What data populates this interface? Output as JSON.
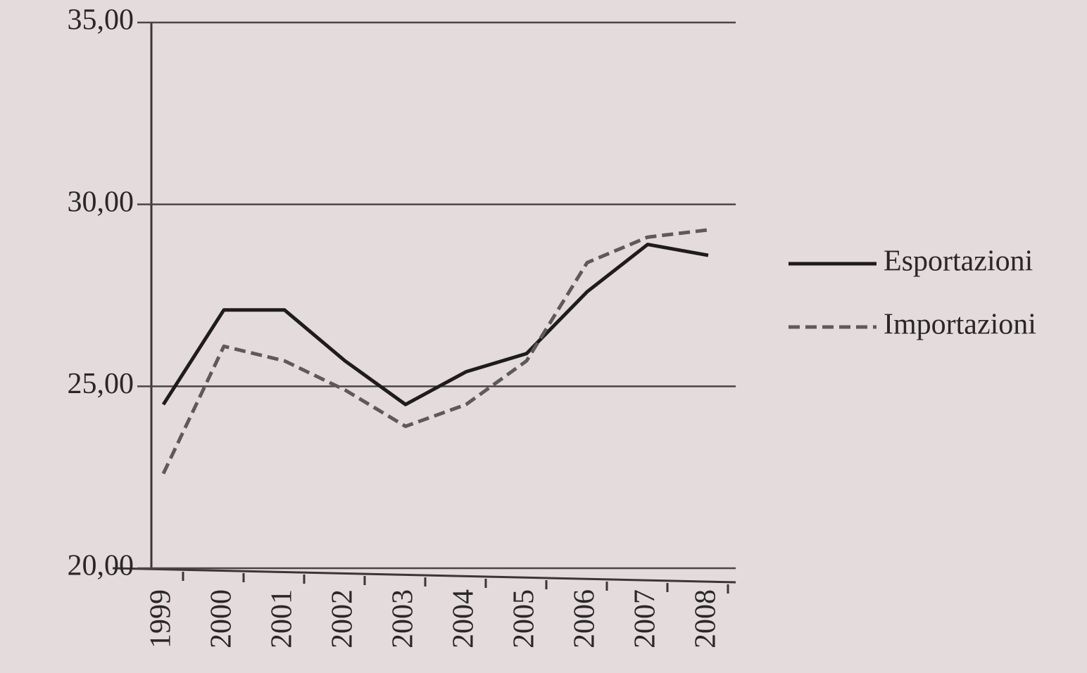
{
  "chart_data": {
    "type": "line",
    "categories": [
      "1999",
      "2000",
      "2001",
      "2002",
      "2003",
      "2004",
      "2005",
      "2006",
      "2007",
      "2008"
    ],
    "series": [
      {
        "name": "Esportazioni",
        "color": "#1e1c1d",
        "style": "solid",
        "values": [
          24.5,
          27.1,
          27.1,
          25.7,
          24.5,
          25.4,
          25.9,
          27.6,
          28.9,
          28.6
        ]
      },
      {
        "name": "Importazioni",
        "color": "#5e5a5c",
        "style": "dashed",
        "values": [
          22.6,
          26.1,
          25.7,
          24.9,
          23.9,
          24.5,
          25.7,
          28.4,
          29.1,
          29.3
        ]
      }
    ],
    "ylim": [
      20,
      35
    ],
    "yticks": [
      {
        "value": 20,
        "label": "20,00"
      },
      {
        "value": 25,
        "label": "25,00"
      },
      {
        "value": 30,
        "label": "30,00"
      },
      {
        "value": 35,
        "label": "35,00"
      }
    ],
    "grid": true,
    "legend": "right"
  }
}
